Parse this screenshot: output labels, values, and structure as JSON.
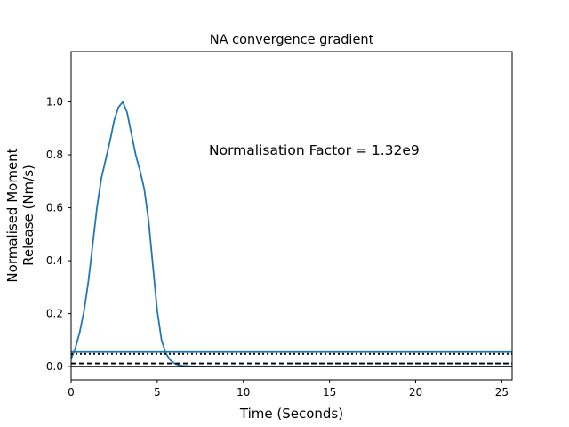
{
  "chart_data": {
    "type": "line",
    "title": "NA convergence gradient",
    "xlabel": "Time (Seconds)",
    "ylabel_lines": [
      "Normalised Moment",
      "Release (Nm/s)"
    ],
    "annotation": "Normalisation Factor = 1.32e9",
    "xlim": [
      0,
      25.6
    ],
    "ylim": [
      -0.05,
      1.19
    ],
    "xticks": [
      0,
      5,
      10,
      15,
      20,
      25
    ],
    "xtick_labels": [
      "0",
      "5",
      "10",
      "15",
      "20",
      "25"
    ],
    "yticks": [
      0.0,
      0.2,
      0.4,
      0.6,
      0.8,
      1.0
    ],
    "ytick_labels": [
      "0.0",
      "0.2",
      "0.4",
      "0.6",
      "0.8",
      "1.0"
    ],
    "grid": false,
    "series": [
      {
        "style": "solid",
        "color": "#1f77b4",
        "x": [
          0,
          0.25,
          0.5,
          0.75,
          1.0,
          1.25,
          1.5,
          1.75,
          2.0,
          2.25,
          2.5,
          2.75,
          3.0,
          3.25,
          3.5,
          3.75,
          4.0,
          4.25,
          4.5,
          4.75,
          5.0,
          5.25,
          5.5,
          5.75,
          6.0,
          6.25,
          6.5,
          6.75,
          7.0,
          7.5,
          8.0,
          10,
          15,
          20,
          25.6
        ],
        "y": [
          0.03,
          0.07,
          0.13,
          0.21,
          0.32,
          0.46,
          0.6,
          0.71,
          0.78,
          0.85,
          0.93,
          0.98,
          1.0,
          0.96,
          0.88,
          0.8,
          0.74,
          0.67,
          0.55,
          0.38,
          0.21,
          0.1,
          0.05,
          0.025,
          0.012,
          0.006,
          0.003,
          0.002,
          0.001,
          0.0005,
          0.0,
          0.0,
          0.0,
          0.0,
          0.0
        ]
      },
      {
        "style": "hline",
        "color": "#1f77b4",
        "y": 0.055
      },
      {
        "style": "dotted",
        "color": "#000000",
        "y": 0.048
      },
      {
        "style": "dashed",
        "color": "#000000",
        "y": 0.012
      },
      {
        "style": "hline",
        "color": "#000000",
        "y": 0.0
      }
    ]
  }
}
